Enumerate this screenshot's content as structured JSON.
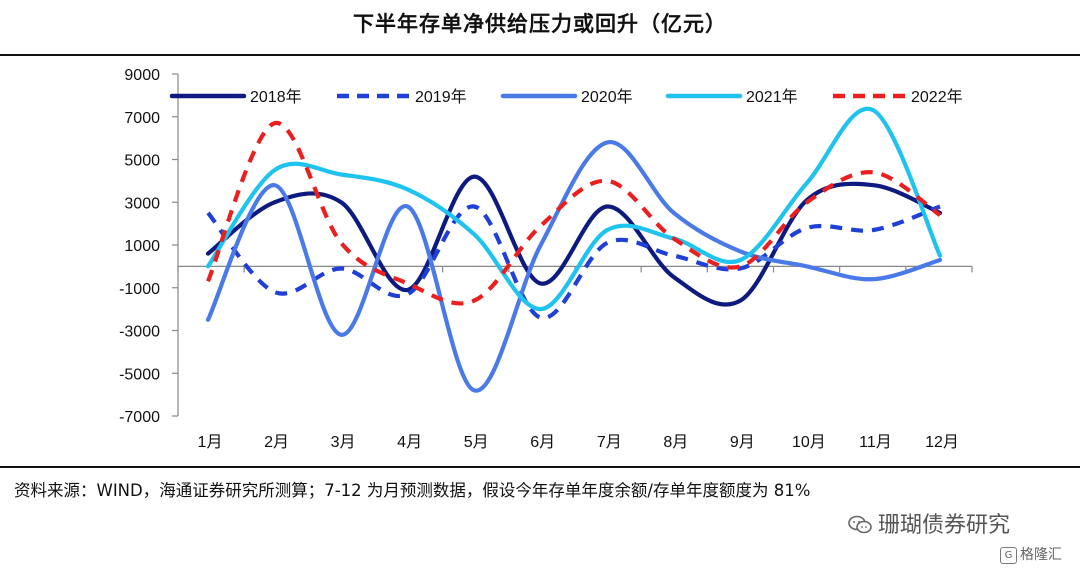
{
  "title": "下半年存单净供给压力或回升（亿元）",
  "source_note": "资料来源：WIND，海通证券研究所测算；7-12 为月预测数据，假设今年存单年度余额/存单年度额度为 81%",
  "watermark": "珊瑚债券研究",
  "logo_text": "格隆汇",
  "icons": {
    "watermark": "wechat-icon",
    "logo": "gelonghui-logo-icon"
  },
  "chart_data": {
    "type": "line",
    "title": "下半年存单净供给压力或回升（亿元）",
    "xlabel": "",
    "ylabel": "",
    "categories": [
      "1月",
      "2月",
      "3月",
      "4月",
      "5月",
      "6月",
      "7月",
      "8月",
      "9月",
      "10月",
      "11月",
      "12月"
    ],
    "ylim": [
      -7000,
      9000
    ],
    "yticks": [
      9000,
      7000,
      5000,
      3000,
      1000,
      -1000,
      -3000,
      -5000,
      -7000
    ],
    "ytick_labels": [
      "9000",
      "7000",
      "5000",
      "3000",
      "1000",
      "-1000",
      "-3000",
      "-5000",
      "-7000"
    ],
    "grid": false,
    "legend_position": "top",
    "series": [
      {
        "name": "2018年",
        "color": "#0d1a80",
        "dash": "solid",
        "values": [
          600,
          3000,
          3000,
          -1100,
          4200,
          -800,
          2800,
          -500,
          -1600,
          3100,
          3800,
          2500
        ]
      },
      {
        "name": "2019年",
        "color": "#1f3fd6",
        "dash": "dashed",
        "values": [
          2500,
          -1200,
          -100,
          -1300,
          2800,
          -2400,
          1100,
          500,
          -100,
          1800,
          1700,
          2800
        ]
      },
      {
        "name": "2020年",
        "color": "#4a7ae8",
        "dash": "solid",
        "values": [
          -2500,
          3800,
          -3200,
          2800,
          -5800,
          1000,
          5800,
          2500,
          700,
          0,
          -600,
          300
        ]
      },
      {
        "name": "2021年",
        "color": "#1fc3ef",
        "dash": "solid",
        "values": [
          0,
          4500,
          4300,
          3600,
          1500,
          -2000,
          1700,
          1300,
          300,
          3900,
          7300,
          500
        ]
      },
      {
        "name": "2022年",
        "color": "#ea2020",
        "dash": "dashed",
        "values": [
          -700,
          6700,
          1100,
          -800,
          -1600,
          1900,
          4000,
          1300,
          0,
          3000,
          4400,
          2400
        ]
      }
    ]
  }
}
